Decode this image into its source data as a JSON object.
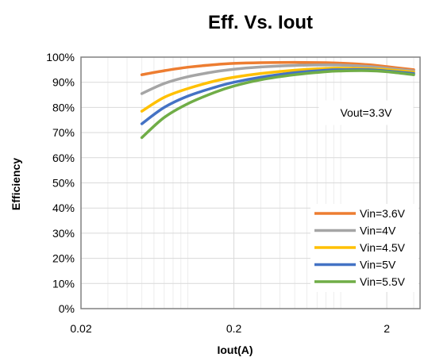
{
  "chart_data": {
    "type": "line",
    "title": "Eff. Vs. Iout",
    "xlabel": "Iout(A)",
    "ylabel": "Efficiency",
    "x_scale": "log",
    "xlim": [
      0.02,
      3.3
    ],
    "ylim": [
      0,
      100
    ],
    "x_ticks": [
      0.02,
      0.2,
      2
    ],
    "x_tick_labels": [
      "0.02",
      "0.2",
      "2"
    ],
    "y_ticks": [
      0,
      10,
      20,
      30,
      40,
      50,
      60,
      70,
      80,
      90,
      100
    ],
    "y_tick_labels": [
      "0%",
      "10%",
      "20%",
      "30%",
      "40%",
      "50%",
      "60%",
      "70%",
      "80%",
      "90%",
      "100%"
    ],
    "grid": true,
    "annotation": "Vout=3.3V",
    "legend_position": "bottom-right",
    "series": [
      {
        "name": "Vin=3.6V",
        "color": "#ED7D31",
        "x": [
          0.05,
          0.07,
          0.1,
          0.15,
          0.2,
          0.3,
          0.5,
          0.8,
          1.0,
          1.5,
          2.0,
          3.0
        ],
        "y": [
          93,
          94.6,
          96,
          97,
          97.5,
          97.8,
          97.9,
          97.8,
          97.6,
          97,
          96.2,
          95
        ]
      },
      {
        "name": "Vin=4V",
        "color": "#A5A5A5",
        "x": [
          0.05,
          0.07,
          0.1,
          0.15,
          0.2,
          0.3,
          0.5,
          0.8,
          1.0,
          1.5,
          2.0,
          3.0
        ],
        "y": [
          85.5,
          89.5,
          92.2,
          94.2,
          95.2,
          96.1,
          96.7,
          96.9,
          96.8,
          96.3,
          95.6,
          94.5
        ]
      },
      {
        "name": "Vin=4.5V",
        "color": "#FFC000",
        "x": [
          0.05,
          0.07,
          0.1,
          0.15,
          0.2,
          0.3,
          0.5,
          0.8,
          1.0,
          1.5,
          2.0,
          3.0
        ],
        "y": [
          78.5,
          84,
          87.5,
          90.5,
          92,
          93.5,
          94.8,
          95.5,
          95.6,
          95.4,
          95,
          94
        ]
      },
      {
        "name": "Vin=5V",
        "color": "#4472C4",
        "x": [
          0.05,
          0.07,
          0.1,
          0.15,
          0.2,
          0.3,
          0.5,
          0.8,
          1.0,
          1.5,
          2.0,
          3.0
        ],
        "y": [
          73.5,
          80,
          84.5,
          88,
          90,
          92,
          93.8,
          94.8,
          95,
          95,
          94.5,
          93.5
        ]
      },
      {
        "name": "Vin=5.5V",
        "color": "#70AD47",
        "x": [
          0.05,
          0.07,
          0.1,
          0.15,
          0.2,
          0.3,
          0.5,
          0.8,
          1.0,
          1.5,
          2.0,
          3.0
        ],
        "y": [
          68,
          76,
          81.5,
          86,
          88.5,
          91,
          93,
          94.2,
          94.5,
          94.6,
          94.2,
          93
        ]
      }
    ]
  }
}
